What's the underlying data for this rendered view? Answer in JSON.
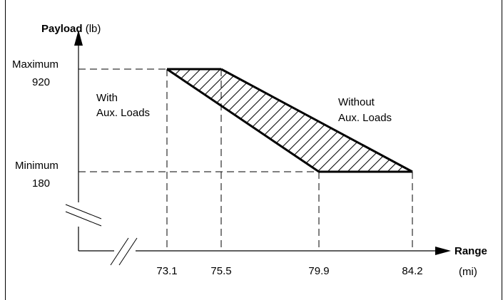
{
  "chart_data": {
    "type": "area",
    "y_axis": {
      "label_bold": "Payload",
      "label_unit": " (lb)"
    },
    "x_axis": {
      "label_bold": "Range",
      "label_unit": "(mi)"
    },
    "y_ticks": [
      {
        "line1": "Maximum",
        "line2": "920",
        "value": 920
      },
      {
        "line1": "Minimum",
        "line2": "180",
        "value": 180
      }
    ],
    "x_ticks": [
      {
        "label": "73.1",
        "value": 73.1
      },
      {
        "label": "75.5",
        "value": 75.5
      },
      {
        "label": "79.9",
        "value": 79.9
      },
      {
        "label": "84.2",
        "value": 84.2
      }
    ],
    "with_aux_line": [
      {
        "x": 73.1,
        "y": 920
      },
      {
        "x": 79.9,
        "y": 180
      }
    ],
    "without_aux_line": [
      {
        "x": 75.5,
        "y": 920
      },
      {
        "x": 84.2,
        "y": 180
      }
    ],
    "annotations": {
      "with_aux": [
        "With",
        "Aux. Loads"
      ],
      "without_aux": [
        "Without",
        "Aux. Loads"
      ]
    },
    "axis_breaks": true
  }
}
